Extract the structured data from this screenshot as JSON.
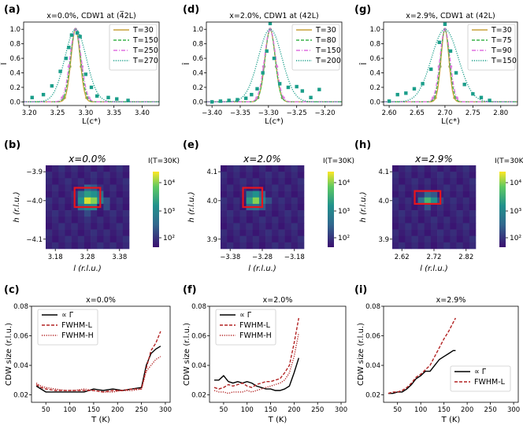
{
  "figure": {
    "panel_labels": [
      "(a)",
      "(d)",
      "(g)",
      "(b)",
      "(e)",
      "(h)",
      "(c)",
      "(f)",
      "(i)"
    ]
  },
  "colors": {
    "T_low": "#c9a23a",
    "T_mid": "#3cb44b",
    "T_mid2": "#e070e0",
    "T_high": "#1b9e8a",
    "heat_low": "#3b0f70",
    "heat_mid": "#21918c",
    "heat_high": "#fde725",
    "box": "#e8141c",
    "size_gamma": "#000000",
    "size_fwhm": "#b22222"
  },
  "chart_data": [
    {
      "id": "a",
      "type": "line",
      "title": "x=0.0%, CDW1 at (4̅2L)",
      "xlabel": "L(c*)",
      "ylabel": "Î",
      "xlim": [
        3.19,
        3.43
      ],
      "ylim": [
        -0.05,
        1.1
      ],
      "xticks": [
        "3.20",
        "3.25",
        "3.30",
        "3.35",
        "3.40"
      ],
      "yticks": [
        "0.0",
        "0.2",
        "0.4",
        "0.6",
        "0.8",
        "1.0"
      ],
      "legend_position": "top-right",
      "series": [
        {
          "name": "T=30",
          "style": "solid",
          "color_key": "T_low",
          "center": 3.282,
          "width": 0.008
        },
        {
          "name": "T=150",
          "style": "dashed",
          "color_key": "T_mid",
          "center": 3.282,
          "width": 0.009
        },
        {
          "name": "T=250",
          "style": "dashdot",
          "color_key": "T_mid2",
          "center": 3.282,
          "width": 0.01
        },
        {
          "name": "T=270",
          "style": "dotted",
          "color_key": "T_high",
          "center": 3.282,
          "width": 0.019
        }
      ],
      "scatter": {
        "color_key": "T_high",
        "points": [
          [
            3.205,
            0.06
          ],
          [
            3.225,
            0.1
          ],
          [
            3.24,
            0.22
          ],
          [
            3.255,
            0.42
          ],
          [
            3.265,
            0.6
          ],
          [
            3.27,
            0.75
          ],
          [
            3.275,
            0.92
          ],
          [
            3.285,
            0.95
          ],
          [
            3.29,
            0.9
          ],
          [
            3.3,
            0.38
          ],
          [
            3.31,
            0.2
          ],
          [
            3.32,
            0.08
          ],
          [
            3.34,
            0.06
          ],
          [
            3.355,
            0.04
          ],
          [
            3.375,
            0.02
          ]
        ]
      }
    },
    {
      "id": "d",
      "type": "line",
      "title": "x=2.0%, CDW1 at (42L)",
      "xlabel": "L(c*)",
      "ylabel": "Î",
      "xlim": [
        -3.41,
        -3.17
      ],
      "ylim": [
        -0.05,
        1.1
      ],
      "xticks": [
        "−3.40",
        "−3.35",
        "−3.30",
        "−3.25",
        "−3.20"
      ],
      "yticks": [
        "0.0",
        "0.2",
        "0.4",
        "0.6",
        "0.8",
        "1.0"
      ],
      "legend_position": "top-right",
      "series": [
        {
          "name": "T=30",
          "style": "solid",
          "color_key": "T_low",
          "center": -3.297,
          "width": 0.009
        },
        {
          "name": "T=80",
          "style": "dashed",
          "color_key": "T_mid",
          "center": -3.297,
          "width": 0.009
        },
        {
          "name": "T=150",
          "style": "dashdot",
          "color_key": "T_mid2",
          "center": -3.297,
          "width": 0.01
        },
        {
          "name": "T=200",
          "style": "dotted",
          "color_key": "T_high",
          "center": -3.297,
          "width": 0.021
        }
      ],
      "scatter": {
        "color_key": "T_high",
        "points": [
          [
            -3.4,
            0.0
          ],
          [
            -3.385,
            0.01
          ],
          [
            -3.37,
            0.02
          ],
          [
            -3.355,
            0.03
          ],
          [
            -3.34,
            0.05
          ],
          [
            -3.33,
            0.1
          ],
          [
            -3.32,
            0.18
          ],
          [
            -3.31,
            0.4
          ],
          [
            -3.303,
            0.7
          ],
          [
            -3.297,
            1.08
          ],
          [
            -3.29,
            0.6
          ],
          [
            -3.28,
            0.25
          ],
          [
            -3.265,
            0.2
          ],
          [
            -3.25,
            0.21
          ],
          [
            -3.24,
            0.15
          ],
          [
            -3.225,
            0.06
          ],
          [
            -3.21,
            0.17
          ]
        ]
      }
    },
    {
      "id": "g",
      "type": "line",
      "title": "x=2.9%, CDW1 at (42L)",
      "xlabel": "L(c*)",
      "ylabel": "Î",
      "xlim": [
        2.59,
        2.83
      ],
      "ylim": [
        -0.05,
        1.1
      ],
      "xticks": [
        "2.60",
        "2.65",
        "2.70",
        "2.75",
        "2.80"
      ],
      "yticks": [
        "0.0",
        "0.2",
        "0.4",
        "0.6",
        "0.8",
        "1.0"
      ],
      "legend_position": "top-right",
      "series": [
        {
          "name": "T=30",
          "style": "solid",
          "color_key": "T_low",
          "center": 2.7,
          "width": 0.007
        },
        {
          "name": "T=75",
          "style": "dashed",
          "color_key": "T_mid",
          "center": 2.7,
          "width": 0.008
        },
        {
          "name": "T=90",
          "style": "dashdot",
          "color_key": "T_mid2",
          "center": 2.7,
          "width": 0.009
        },
        {
          "name": "T=150",
          "style": "dotted",
          "color_key": "T_high",
          "center": 2.7,
          "width": 0.024
        }
      ],
      "scatter": {
        "color_key": "T_high",
        "points": [
          [
            2.6,
            0.01
          ],
          [
            2.615,
            0.1
          ],
          [
            2.63,
            0.12
          ],
          [
            2.645,
            0.18
          ],
          [
            2.66,
            0.25
          ],
          [
            2.675,
            0.45
          ],
          [
            2.69,
            0.82
          ],
          [
            2.7,
            1.07
          ],
          [
            2.71,
            0.7
          ],
          [
            2.72,
            0.4
          ],
          [
            2.735,
            0.24
          ],
          [
            2.75,
            0.11
          ],
          [
            2.765,
            0.06
          ],
          [
            2.78,
            0.02
          ]
        ]
      }
    },
    {
      "id": "b",
      "type": "heatmap",
      "title": "x=0.0%",
      "xlabel": "l (r.l.u.)",
      "ylabel": "h (r.l.u.)",
      "xticks": [
        "3.18",
        "3.28",
        "3.38"
      ],
      "yticks": [
        "−3.9",
        "−4.0",
        "−4.1"
      ],
      "colorbar_label": "I(T=30K)",
      "colorbar_ticks": [
        "10⁴",
        "10³",
        "10²"
      ],
      "grid_size": 13,
      "hot_cells": [
        [
          6,
          5,
          0.95
        ],
        [
          7,
          5,
          0.85
        ],
        [
          6,
          4,
          0.6
        ],
        [
          7,
          4,
          0.55
        ],
        [
          5,
          5,
          0.55
        ],
        [
          8,
          5,
          0.45
        ],
        [
          6,
          6,
          0.45
        ],
        [
          7,
          6,
          0.5
        ],
        [
          5,
          4,
          0.4
        ],
        [
          8,
          4,
          0.35
        ],
        [
          5,
          6,
          0.35
        ],
        [
          6,
          3,
          0.3
        ],
        [
          7,
          3,
          0.25
        ],
        [
          9,
          6,
          0.2
        ],
        [
          9,
          5,
          0.22
        ],
        [
          6,
          7,
          0.2
        ]
      ],
      "box_cells": [
        [
          4.5,
          3.5,
          8.5,
          6.5
        ]
      ]
    },
    {
      "id": "e",
      "type": "heatmap",
      "title": "x=2.0%",
      "xlabel": "l (r.l.u.)",
      "ylabel": "h (r.l.u.)",
      "xticks": [
        "−3.38",
        "−3.28",
        "−3.18"
      ],
      "yticks": [
        "4.1",
        "4.0",
        "3.9"
      ],
      "colorbar_label": "I(T=30K)",
      "colorbar_ticks": [
        "10⁴",
        "10³",
        "10²"
      ],
      "grid_size": 13,
      "hot_cells": [
        [
          5,
          5,
          0.85
        ],
        [
          4,
          5,
          0.6
        ],
        [
          5,
          4,
          0.55
        ],
        [
          4,
          4,
          0.4
        ],
        [
          6,
          5,
          0.45
        ],
        [
          5,
          6,
          0.35
        ],
        [
          4,
          6,
          0.3
        ],
        [
          6,
          4,
          0.3
        ],
        [
          6,
          6,
          0.25
        ],
        [
          7,
          5,
          0.22
        ]
      ],
      "box_cells": [
        [
          3.5,
          3.5,
          6.5,
          6.5
        ]
      ]
    },
    {
      "id": "h",
      "type": "heatmap",
      "title": "x=2.9%",
      "xlabel": "l (r.l.u.)",
      "ylabel": "h (r.l.u.)",
      "xticks": [
        "2.62",
        "2.72",
        "2.82"
      ],
      "yticks": [
        "4.1",
        "4.0",
        "3.9"
      ],
      "colorbar_label": "I(T=30K)",
      "colorbar_ticks": [
        "10⁴",
        "10³",
        "10²"
      ],
      "grid_size": 13,
      "hot_cells": [
        [
          5,
          5,
          0.7
        ],
        [
          6,
          5,
          0.55
        ],
        [
          4,
          5,
          0.35
        ],
        [
          5,
          4,
          0.3
        ],
        [
          6,
          4,
          0.25
        ],
        [
          5,
          6,
          0.22
        ],
        [
          7,
          5,
          0.2
        ]
      ],
      "box_cells": [
        [
          3.5,
          4.0,
          7.5,
          6.0
        ]
      ]
    },
    {
      "id": "c",
      "type": "line",
      "title": "x=0.0%",
      "xlabel": "T (K)",
      "ylabel": "CDW size (r.l.u.)",
      "xlim": [
        20,
        310
      ],
      "ylim": [
        0.015,
        0.08
      ],
      "xticks": [
        "50",
        "100",
        "150",
        "200",
        "250",
        "300"
      ],
      "yticks": [
        "0.02",
        "0.04",
        "0.06",
        "0.08"
      ],
      "legend_position": "top-left",
      "series": [
        {
          "name": "∝ Γ",
          "style": "solid",
          "color_key": "size_gamma",
          "x": [
            30,
            40,
            50,
            70,
            90,
            110,
            130,
            150,
            170,
            190,
            210,
            230,
            250,
            260,
            270,
            280,
            290
          ],
          "y": [
            0.026,
            0.024,
            0.022,
            0.022,
            0.022,
            0.022,
            0.022,
            0.024,
            0.023,
            0.024,
            0.023,
            0.024,
            0.025,
            0.04,
            0.048,
            0.051,
            0.053
          ]
        },
        {
          "name": "FWHM-L",
          "style": "dashed",
          "color_key": "size_fwhm",
          "x": [
            30,
            40,
            50,
            70,
            90,
            110,
            130,
            150,
            170,
            190,
            210,
            230,
            250,
            260,
            270,
            280,
            290
          ],
          "y": [
            0.027,
            0.025,
            0.024,
            0.023,
            0.023,
            0.023,
            0.023,
            0.023,
            0.022,
            0.023,
            0.023,
            0.024,
            0.024,
            0.038,
            0.05,
            0.055,
            0.063
          ]
        },
        {
          "name": "FWHM-H",
          "style": "dotted",
          "color_key": "size_fwhm",
          "x": [
            30,
            40,
            50,
            70,
            90,
            110,
            130,
            150,
            170,
            190,
            210,
            230,
            250,
            260,
            270,
            280,
            290
          ],
          "y": [
            0.028,
            0.026,
            0.025,
            0.024,
            0.023,
            0.023,
            0.024,
            0.023,
            0.022,
            0.022,
            0.023,
            0.023,
            0.024,
            0.036,
            0.04,
            0.044,
            0.046
          ]
        }
      ]
    },
    {
      "id": "f",
      "type": "line",
      "title": "x=2.0%",
      "xlabel": "T (K)",
      "ylabel": "CDW size (r.l.u.)",
      "xlim": [
        20,
        310
      ],
      "ylim": [
        0.015,
        0.08
      ],
      "xticks": [
        "50",
        "100",
        "150",
        "200",
        "250",
        "300"
      ],
      "yticks": [
        "0.02",
        "0.04",
        "0.06",
        "0.08"
      ],
      "legend_position": "top-left",
      "series": [
        {
          "name": "∝ Γ",
          "style": "solid",
          "color_key": "size_gamma",
          "x": [
            30,
            40,
            50,
            60,
            70,
            80,
            90,
            100,
            110,
            120,
            130,
            140,
            150,
            160,
            170,
            180,
            190,
            200,
            210
          ],
          "y": [
            0.03,
            0.03,
            0.033,
            0.029,
            0.028,
            0.029,
            0.028,
            0.029,
            0.028,
            0.026,
            0.025,
            0.024,
            0.024,
            0.023,
            0.023,
            0.024,
            0.026,
            0.035,
            0.045
          ]
        },
        {
          "name": "FWHM-L",
          "style": "dashed",
          "color_key": "size_fwhm",
          "x": [
            30,
            40,
            50,
            60,
            70,
            80,
            90,
            100,
            110,
            120,
            130,
            140,
            150,
            160,
            170,
            180,
            190,
            200,
            210
          ],
          "y": [
            0.025,
            0.024,
            0.025,
            0.027,
            0.026,
            0.027,
            0.028,
            0.026,
            0.025,
            0.027,
            0.028,
            0.029,
            0.029,
            0.03,
            0.031,
            0.035,
            0.04,
            0.055,
            0.072
          ]
        },
        {
          "name": "FWHM-H",
          "style": "dotted",
          "color_key": "size_fwhm",
          "x": [
            30,
            40,
            50,
            60,
            70,
            80,
            90,
            100,
            110,
            120,
            130,
            140,
            150,
            160,
            170,
            180,
            190,
            200,
            210
          ],
          "y": [
            0.023,
            0.022,
            0.022,
            0.021,
            0.022,
            0.022,
            0.022,
            0.023,
            0.022,
            0.023,
            0.024,
            0.025,
            0.026,
            0.027,
            0.028,
            0.03,
            0.035,
            0.046,
            0.062
          ]
        }
      ]
    },
    {
      "id": "i",
      "type": "line",
      "title": "x=2.9%",
      "xlabel": "T (K)",
      "ylabel": "CDW size (r.l.u.)",
      "xlim": [
        20,
        310
      ],
      "ylim": [
        0.015,
        0.08
      ],
      "xticks": [
        "50",
        "100",
        "150",
        "200",
        "250",
        "300"
      ],
      "yticks": [
        "0.02",
        "0.04",
        "0.06",
        "0.08"
      ],
      "legend_position": "bottom-right",
      "series": [
        {
          "name": "∝ Γ",
          "style": "solid",
          "color_key": "size_gamma",
          "x": [
            30,
            40,
            50,
            60,
            70,
            80,
            90,
            100,
            110,
            120,
            130,
            140,
            150,
            160,
            170,
            175
          ],
          "y": [
            0.021,
            0.021,
            0.022,
            0.022,
            0.024,
            0.027,
            0.031,
            0.033,
            0.036,
            0.036,
            0.04,
            0.044,
            0.046,
            0.048,
            0.05,
            0.05
          ]
        },
        {
          "name": "FWHM-L",
          "style": "dashed",
          "color_key": "size_fwhm",
          "x": [
            30,
            40,
            50,
            60,
            70,
            80,
            90,
            100,
            110,
            120,
            130,
            140,
            150,
            160,
            170,
            175
          ],
          "y": [
            0.021,
            0.022,
            0.022,
            0.023,
            0.025,
            0.028,
            0.032,
            0.034,
            0.037,
            0.04,
            0.046,
            0.052,
            0.058,
            0.063,
            0.069,
            0.072
          ]
        }
      ]
    }
  ]
}
